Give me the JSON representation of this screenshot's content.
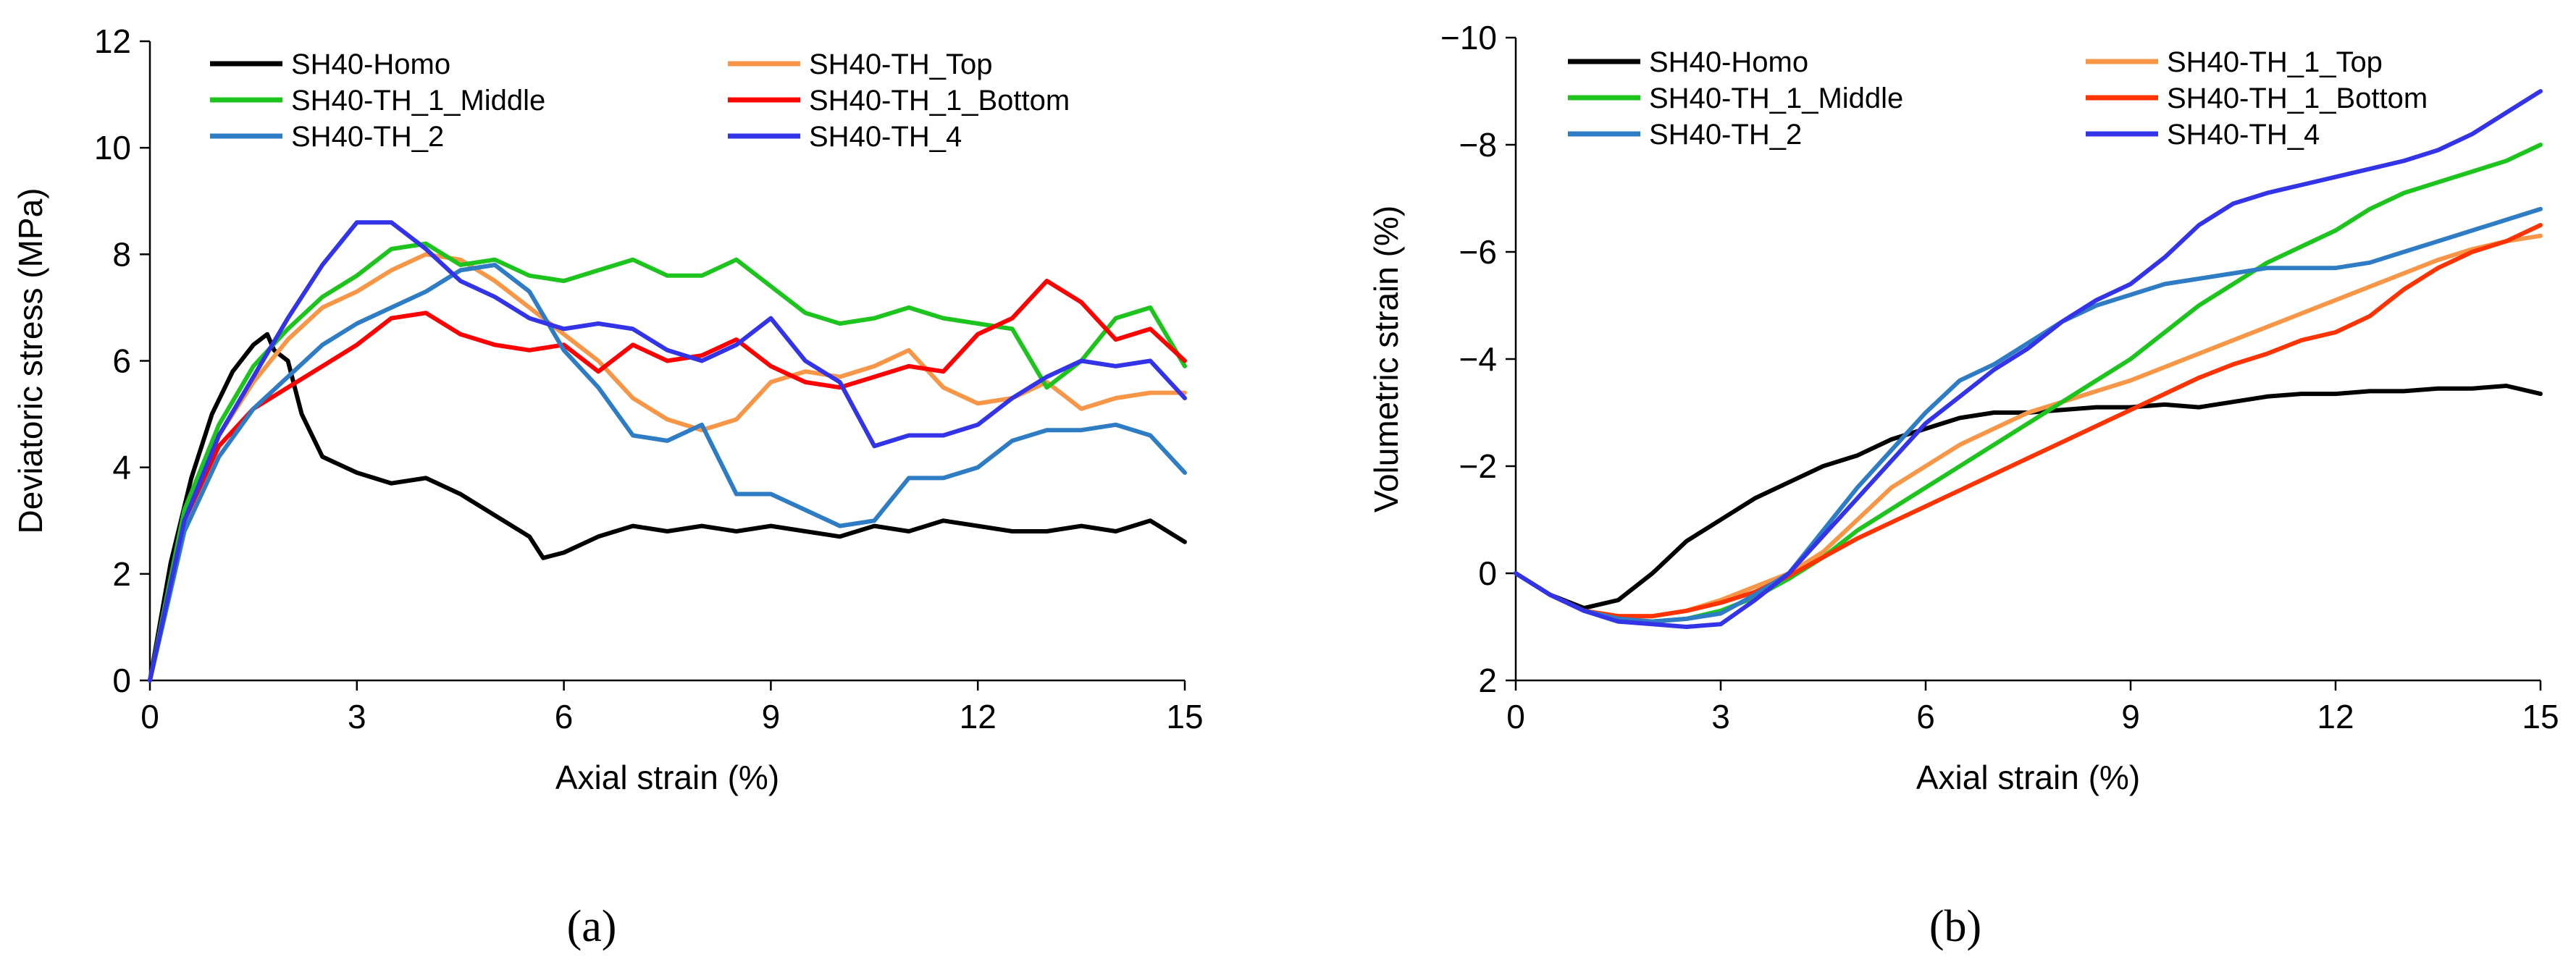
{
  "chart_data": [
    {
      "type": "line",
      "panel_label": "(a)",
      "xlabel": "Axial strain (%)",
      "ylabel": "Deviatoric stress (MPa)",
      "xlim": [
        0,
        15
      ],
      "ylim": [
        0,
        12
      ],
      "xticks": [
        0,
        3,
        6,
        9,
        12,
        15
      ],
      "yticks": [
        0,
        2,
        4,
        6,
        8,
        10,
        12
      ],
      "y_inverted": false,
      "legend_position": "top",
      "series": [
        {
          "name": "SH40-Homo",
          "color": "#000000",
          "x": [
            0,
            0.3,
            0.6,
            0.9,
            1.2,
            1.5,
            1.7,
            1.8,
            2.0,
            2.2,
            2.5,
            3.0,
            3.5,
            4.0,
            4.5,
            5.0,
            5.5,
            5.7,
            6.0,
            6.5,
            7.0,
            7.5,
            8.0,
            8.5,
            9.0,
            9.5,
            10.0,
            10.5,
            11.0,
            11.5,
            12.0,
            12.5,
            13.0,
            13.5,
            14.0,
            14.5,
            15.0
          ],
          "y": [
            0,
            2.2,
            3.8,
            5.0,
            5.8,
            6.3,
            6.5,
            6.2,
            6.0,
            5.0,
            4.2,
            3.9,
            3.7,
            3.8,
            3.5,
            3.1,
            2.7,
            2.3,
            2.4,
            2.7,
            2.9,
            2.8,
            2.9,
            2.8,
            2.9,
            2.8,
            2.7,
            2.9,
            2.8,
            3.0,
            2.9,
            2.8,
            2.8,
            2.9,
            2.8,
            3.0,
            2.6
          ]
        },
        {
          "name": "SH40-TH_Top",
          "color": "#F79646",
          "x": [
            0,
            0.5,
            1.0,
            1.5,
            2.0,
            2.5,
            3.0,
            3.5,
            4.0,
            4.5,
            5.0,
            5.5,
            6.0,
            6.5,
            7.0,
            7.5,
            8.0,
            8.5,
            9.0,
            9.5,
            10.0,
            10.5,
            11.0,
            11.5,
            12.0,
            12.5,
            13.0,
            13.5,
            14.0,
            14.5,
            15.0
          ],
          "y": [
            0,
            3.0,
            4.6,
            5.6,
            6.4,
            7.0,
            7.3,
            7.7,
            8.0,
            7.9,
            7.5,
            7.0,
            6.5,
            6.0,
            5.3,
            4.9,
            4.7,
            4.9,
            5.6,
            5.8,
            5.7,
            5.9,
            6.2,
            5.5,
            5.2,
            5.3,
            5.6,
            5.1,
            5.3,
            5.4,
            5.4
          ]
        },
        {
          "name": "SH40-TH_1_Middle",
          "color": "#1EC41E",
          "x": [
            0,
            0.5,
            1.0,
            1.5,
            2.0,
            2.5,
            3.0,
            3.5,
            4.0,
            4.5,
            5.0,
            5.5,
            6.0,
            6.5,
            7.0,
            7.5,
            8.0,
            8.5,
            9.0,
            9.5,
            10.0,
            10.5,
            11.0,
            11.5,
            12.0,
            12.5,
            13.0,
            13.5,
            14.0,
            14.5,
            15.0
          ],
          "y": [
            0,
            3.2,
            4.8,
            5.9,
            6.6,
            7.2,
            7.6,
            8.1,
            8.2,
            7.8,
            7.9,
            7.6,
            7.5,
            7.7,
            7.9,
            7.6,
            7.6,
            7.9,
            7.4,
            6.9,
            6.7,
            6.8,
            7.0,
            6.8,
            6.7,
            6.6,
            5.5,
            6.0,
            6.8,
            7.0,
            5.9
          ]
        },
        {
          "name": "SH40-TH_1_Bottom",
          "color": "#FF0000",
          "x": [
            0,
            0.5,
            1.0,
            1.5,
            2.0,
            2.5,
            3.0,
            3.5,
            4.0,
            4.5,
            5.0,
            5.5,
            6.0,
            6.5,
            7.0,
            7.5,
            8.0,
            8.5,
            9.0,
            9.5,
            10.0,
            10.5,
            11.0,
            11.5,
            12.0,
            12.5,
            13.0,
            13.5,
            14.0,
            14.5,
            15.0
          ],
          "y": [
            0,
            3.0,
            4.4,
            5.1,
            5.5,
            5.9,
            6.3,
            6.8,
            6.9,
            6.5,
            6.3,
            6.2,
            6.3,
            5.8,
            6.3,
            6.0,
            6.1,
            6.4,
            5.9,
            5.6,
            5.5,
            5.7,
            5.9,
            5.8,
            6.5,
            6.8,
            7.5,
            7.1,
            6.4,
            6.6,
            6.0
          ]
        },
        {
          "name": "SH40-TH_2",
          "color": "#2E7DC4",
          "x": [
            0,
            0.5,
            1.0,
            1.5,
            2.0,
            2.5,
            3.0,
            3.5,
            4.0,
            4.5,
            5.0,
            5.5,
            6.0,
            6.5,
            7.0,
            7.5,
            8.0,
            8.5,
            9.0,
            9.5,
            10.0,
            10.5,
            11.0,
            11.5,
            12.0,
            12.5,
            13.0,
            13.5,
            14.0,
            14.5,
            15.0
          ],
          "y": [
            0,
            2.8,
            4.2,
            5.1,
            5.7,
            6.3,
            6.7,
            7.0,
            7.3,
            7.7,
            7.8,
            7.3,
            6.2,
            5.5,
            4.6,
            4.5,
            4.8,
            3.5,
            3.5,
            3.2,
            2.9,
            3.0,
            3.8,
            3.8,
            4.0,
            4.5,
            4.7,
            4.7,
            4.8,
            4.6,
            3.9
          ]
        },
        {
          "name": "SH40-TH_4",
          "color": "#3333E8",
          "x": [
            0,
            0.5,
            1.0,
            1.5,
            2.0,
            2.5,
            3.0,
            3.5,
            4.0,
            4.5,
            5.0,
            5.5,
            6.0,
            6.5,
            7.0,
            7.5,
            8.0,
            8.5,
            9.0,
            9.5,
            10.0,
            10.5,
            11.0,
            11.5,
            12.0,
            12.5,
            13.0,
            13.5,
            14.0,
            14.5,
            15.0
          ],
          "y": [
            0,
            3.0,
            4.6,
            5.7,
            6.8,
            7.8,
            8.6,
            8.6,
            8.1,
            7.5,
            7.2,
            6.8,
            6.6,
            6.7,
            6.6,
            6.2,
            6.0,
            6.3,
            6.8,
            6.0,
            5.6,
            4.4,
            4.6,
            4.6,
            4.8,
            5.3,
            5.7,
            6.0,
            5.9,
            6.0,
            5.3
          ]
        }
      ]
    },
    {
      "type": "line",
      "panel_label": "(b)",
      "xlabel": "Axial strain (%)",
      "ylabel": "Volumetric strain (%)",
      "xlim": [
        0,
        15
      ],
      "ylim": [
        2,
        -10
      ],
      "xticks": [
        0,
        3,
        6,
        9,
        12,
        15
      ],
      "yticks": [
        -10,
        -8,
        -6,
        -4,
        -2,
        0,
        2
      ],
      "y_inverted": true,
      "legend_position": "top",
      "series": [
        {
          "name": "SH40-Homo",
          "color": "#000000",
          "x": [
            0,
            0.5,
            1.0,
            1.5,
            2.0,
            2.5,
            3.0,
            3.5,
            4.0,
            4.5,
            5.0,
            5.5,
            6.0,
            6.5,
            7.0,
            7.5,
            8.0,
            8.5,
            9.0,
            9.5,
            10.0,
            10.5,
            11.0,
            11.5,
            12.0,
            12.5,
            13.0,
            13.5,
            14.0,
            14.5,
            15.0
          ],
          "y": [
            0,
            0.4,
            0.65,
            0.5,
            0.0,
            -0.6,
            -1.0,
            -1.4,
            -1.7,
            -2.0,
            -2.2,
            -2.5,
            -2.7,
            -2.9,
            -3.0,
            -3.0,
            -3.05,
            -3.1,
            -3.1,
            -3.15,
            -3.1,
            -3.2,
            -3.3,
            -3.35,
            -3.35,
            -3.4,
            -3.4,
            -3.45,
            -3.45,
            -3.5,
            -3.35
          ]
        },
        {
          "name": "SH40-TH_1_Top",
          "color": "#F79646",
          "x": [
            0,
            0.5,
            1.0,
            1.5,
            2.0,
            2.5,
            3.0,
            3.5,
            4.0,
            4.5,
            5.0,
            5.5,
            6.0,
            6.5,
            7.0,
            7.5,
            8.0,
            8.5,
            9.0,
            9.5,
            10.0,
            10.5,
            11.0,
            11.5,
            12.0,
            12.5,
            13.0,
            13.5,
            14.0,
            14.5,
            15.0
          ],
          "y": [
            0,
            0.4,
            0.7,
            0.8,
            0.8,
            0.7,
            0.5,
            0.25,
            0.0,
            -0.4,
            -1.0,
            -1.6,
            -2.0,
            -2.4,
            -2.7,
            -3.0,
            -3.2,
            -3.4,
            -3.6,
            -3.85,
            -4.1,
            -4.35,
            -4.6,
            -4.85,
            -5.1,
            -5.35,
            -5.6,
            -5.85,
            -6.05,
            -6.2,
            -6.3
          ]
        },
        {
          "name": "SH40-TH_1_Middle",
          "color": "#1EC41E",
          "x": [
            0,
            0.5,
            1.0,
            1.5,
            2.0,
            2.5,
            3.0,
            3.5,
            4.0,
            4.5,
            5.0,
            5.5,
            6.0,
            6.5,
            7.0,
            7.5,
            8.0,
            8.5,
            9.0,
            9.5,
            10.0,
            10.5,
            11.0,
            11.5,
            12.0,
            12.5,
            13.0,
            13.5,
            14.0,
            14.5,
            15.0
          ],
          "y": [
            0,
            0.4,
            0.7,
            0.9,
            0.9,
            0.85,
            0.7,
            0.45,
            0.1,
            -0.3,
            -0.8,
            -1.2,
            -1.6,
            -2.0,
            -2.4,
            -2.8,
            -3.2,
            -3.6,
            -4.0,
            -4.5,
            -5.0,
            -5.4,
            -5.8,
            -6.1,
            -6.4,
            -6.8,
            -7.1,
            -7.3,
            -7.5,
            -7.7,
            -8.0
          ]
        },
        {
          "name": "SH40-TH_1_Bottom",
          "color": "#FF3300",
          "x": [
            0,
            0.5,
            1.0,
            1.5,
            2.0,
            2.5,
            3.0,
            3.5,
            4.0,
            4.5,
            5.0,
            5.5,
            6.0,
            6.5,
            7.0,
            7.5,
            8.0,
            8.5,
            9.0,
            9.5,
            10.0,
            10.5,
            11.0,
            11.5,
            12.0,
            12.5,
            13.0,
            13.5,
            14.0,
            14.5,
            15.0
          ],
          "y": [
            0,
            0.4,
            0.7,
            0.8,
            0.8,
            0.7,
            0.55,
            0.35,
            0.05,
            -0.3,
            -0.65,
            -0.95,
            -1.25,
            -1.55,
            -1.85,
            -2.15,
            -2.45,
            -2.75,
            -3.05,
            -3.35,
            -3.65,
            -3.9,
            -4.1,
            -4.35,
            -4.5,
            -4.8,
            -5.3,
            -5.7,
            -6.0,
            -6.2,
            -6.5
          ]
        },
        {
          "name": "SH40-TH_2",
          "color": "#2E7DC4",
          "x": [
            0,
            0.5,
            1.0,
            1.5,
            2.0,
            2.5,
            3.0,
            3.5,
            4.0,
            4.5,
            5.0,
            5.5,
            6.0,
            6.5,
            7.0,
            7.5,
            8.0,
            8.5,
            9.0,
            9.5,
            10.0,
            10.5,
            11.0,
            11.5,
            12.0,
            12.5,
            13.0,
            13.5,
            14.0,
            14.5,
            15.0
          ],
          "y": [
            0,
            0.4,
            0.7,
            0.85,
            0.9,
            0.85,
            0.75,
            0.4,
            0.0,
            -0.8,
            -1.6,
            -2.3,
            -3.0,
            -3.6,
            -3.9,
            -4.3,
            -4.7,
            -5.0,
            -5.2,
            -5.4,
            -5.5,
            -5.6,
            -5.7,
            -5.7,
            -5.7,
            -5.8,
            -6.0,
            -6.2,
            -6.4,
            -6.6,
            -6.8
          ]
        },
        {
          "name": "SH40-TH_4",
          "color": "#3333E8",
          "x": [
            0,
            0.5,
            1.0,
            1.5,
            2.0,
            2.5,
            3.0,
            3.5,
            4.0,
            4.5,
            5.0,
            5.5,
            6.0,
            6.5,
            7.0,
            7.5,
            8.0,
            8.5,
            9.0,
            9.5,
            10.0,
            10.5,
            11.0,
            11.5,
            12.0,
            12.5,
            13.0,
            13.5,
            14.0,
            14.5,
            15.0
          ],
          "y": [
            0,
            0.4,
            0.7,
            0.9,
            0.95,
            1.0,
            0.95,
            0.5,
            0.0,
            -0.7,
            -1.4,
            -2.1,
            -2.8,
            -3.3,
            -3.8,
            -4.2,
            -4.7,
            -5.1,
            -5.4,
            -5.9,
            -6.5,
            -6.9,
            -7.1,
            -7.25,
            -7.4,
            -7.55,
            -7.7,
            -7.9,
            -8.2,
            -8.6,
            -9.0
          ]
        }
      ]
    }
  ]
}
